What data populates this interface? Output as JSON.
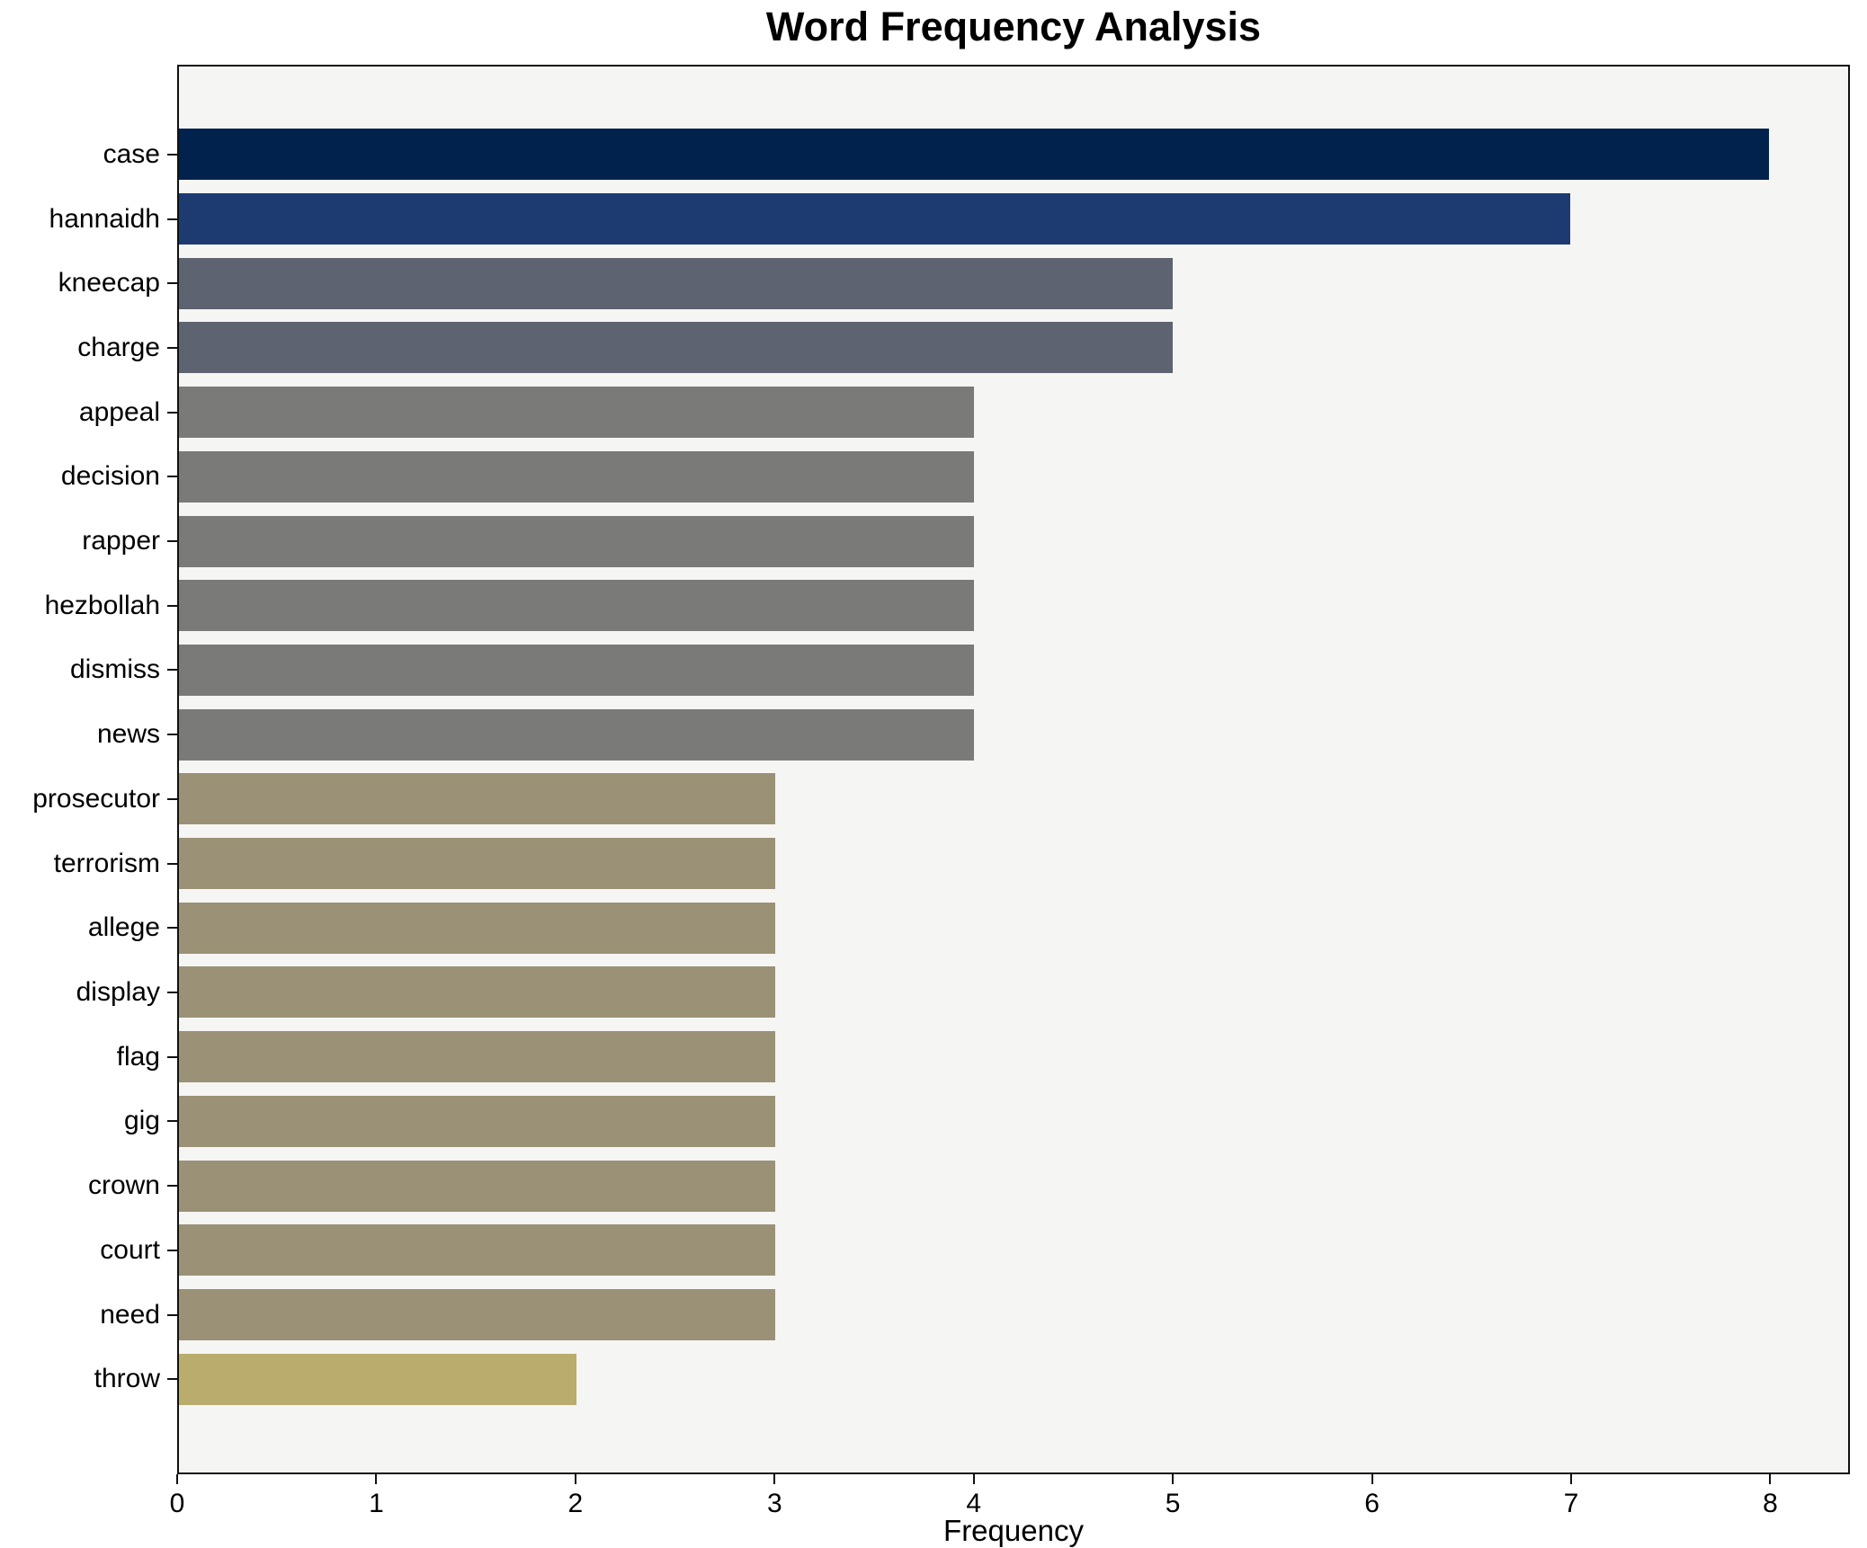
{
  "chart_data": {
    "type": "bar",
    "orientation": "horizontal",
    "title": "Word Frequency Analysis",
    "xlabel": "Frequency",
    "ylabel": "",
    "categories": [
      "case",
      "hannaidh",
      "kneecap",
      "charge",
      "appeal",
      "decision",
      "rapper",
      "hezbollah",
      "dismiss",
      "news",
      "prosecutor",
      "terrorism",
      "allege",
      "display",
      "flag",
      "gig",
      "crown",
      "court",
      "need",
      "throw"
    ],
    "values": [
      8,
      7,
      5,
      5,
      4,
      4,
      4,
      4,
      4,
      4,
      3,
      3,
      3,
      3,
      3,
      3,
      3,
      3,
      3,
      2
    ],
    "bar_colors": [
      "#02224e",
      "#1d3a71",
      "#5d6370",
      "#5d6370",
      "#7a7a78",
      "#7a7a78",
      "#7a7a78",
      "#7a7a78",
      "#7a7a78",
      "#7a7a78",
      "#9a9176",
      "#9a9176",
      "#9a9176",
      "#9a9176",
      "#9a9176",
      "#9a9176",
      "#9a9176",
      "#9a9176",
      "#9a9176",
      "#b9ac6c"
    ],
    "xlim": [
      0,
      8.4
    ],
    "xticks": [
      0,
      1,
      2,
      3,
      4,
      5,
      6,
      7,
      8
    ],
    "grid": false,
    "legend": false,
    "plot_background": "#f5f5f4",
    "figure_background": "#ffffff",
    "spine_color": "#111111",
    "text_color": "#000000"
  }
}
